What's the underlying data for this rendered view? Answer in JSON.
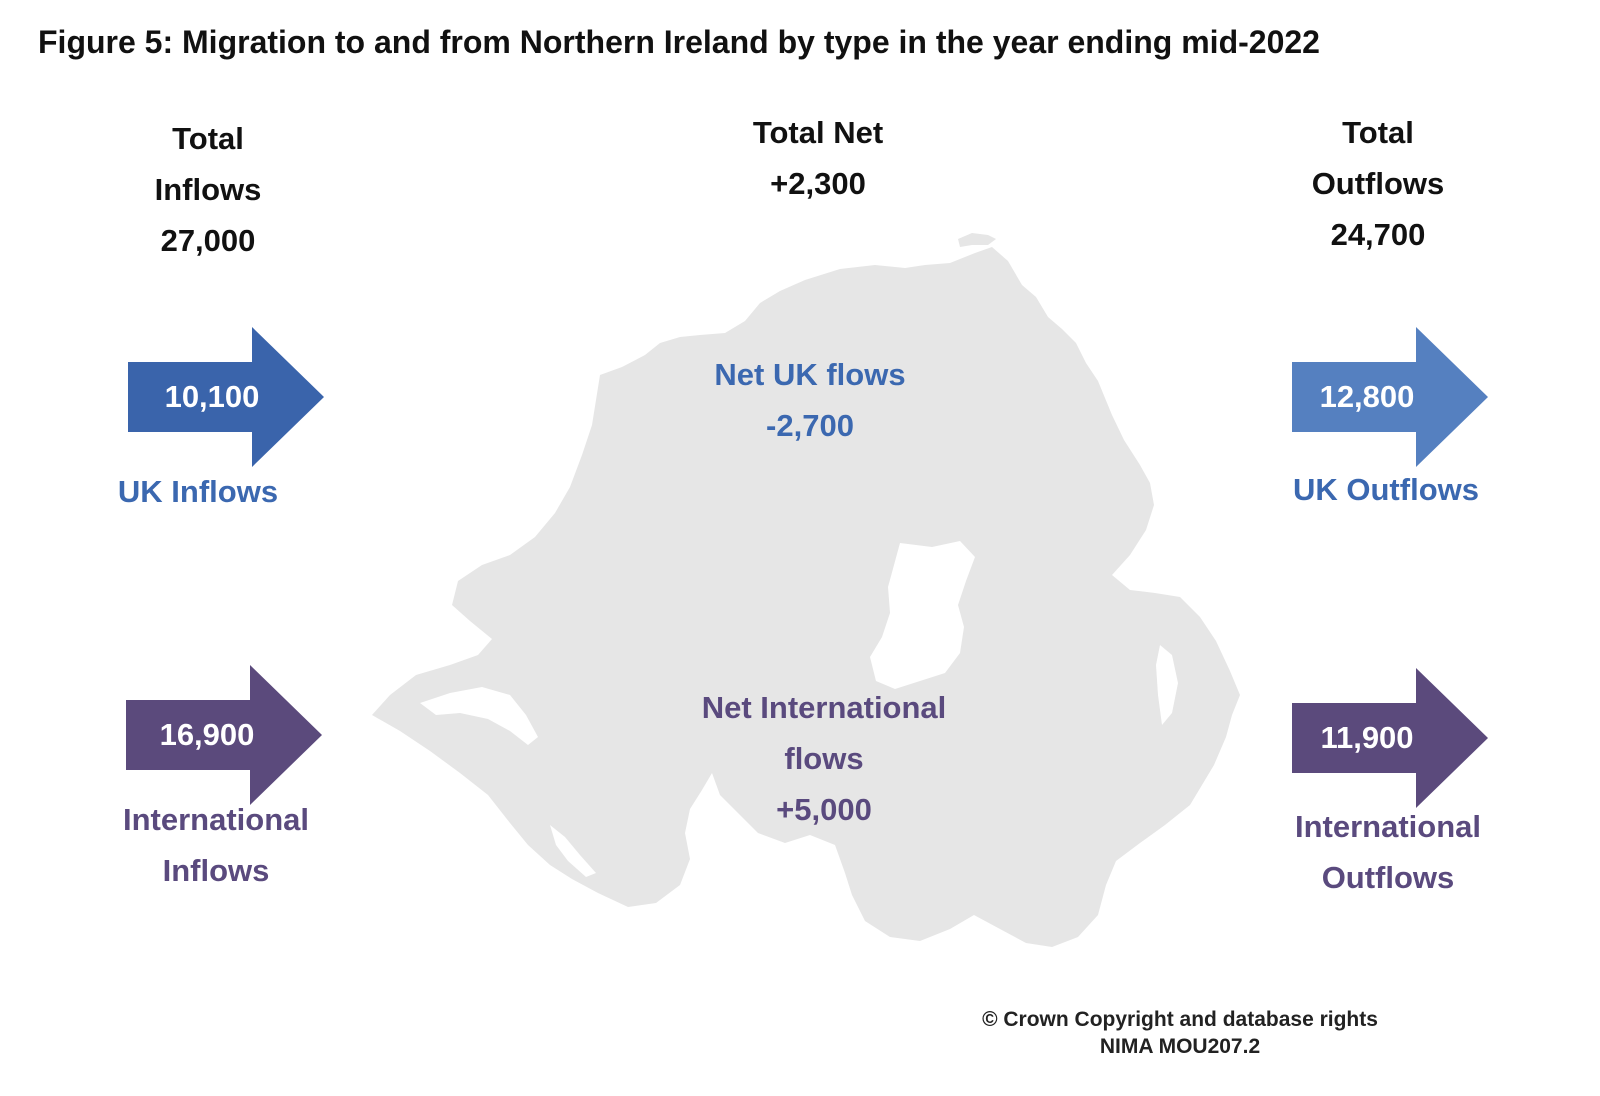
{
  "title": "Figure 5: Migration to and from Northern Ireland by type in the year ending mid-2022",
  "colors": {
    "uk_inflow": "#3a64ab",
    "uk_outflow": "#5580c0",
    "uk_text": "#3b68b0",
    "international": "#5b4a7c",
    "international_text": "#5a4a7e",
    "map_fill": "#e6e6e6"
  },
  "totals": {
    "inflows": {
      "line1": "Total",
      "line2": "Inflows",
      "value": "27,000"
    },
    "net": {
      "line1": "Total Net",
      "value": "+2,300"
    },
    "outflows": {
      "line1": "Total",
      "line2": "Outflows",
      "value": "24,700"
    }
  },
  "uk": {
    "inflow_value": "10,100",
    "inflow_label": "UK Inflows",
    "outflow_value": "12,800",
    "outflow_label": "UK Outflows",
    "net_label": "Net UK flows",
    "net_value": "-2,700"
  },
  "international": {
    "inflow_value": "16,900",
    "inflow_label_1": "International",
    "inflow_label_2": "Inflows",
    "outflow_value": "11,900",
    "outflow_label_1": "International",
    "outflow_label_2": "Outflows",
    "net_label_1": "Net International",
    "net_label_2": "flows",
    "net_value": "+5,000"
  },
  "map": {
    "icon": "northern-ireland-map-silhouette"
  },
  "copyright": {
    "line1": "© Crown Copyright and database rights",
    "line2": "NIMA MOU207.2"
  }
}
